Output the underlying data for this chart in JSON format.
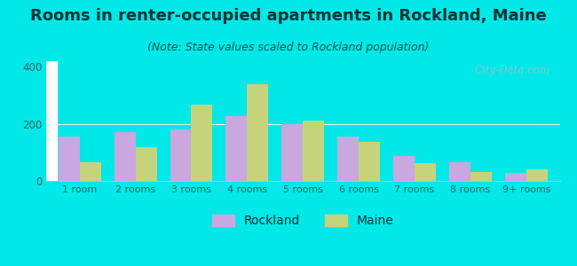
{
  "title": "Rooms in renter-occupied apartments in Rockland, Maine",
  "subtitle": "(Note: State values scaled to Rockland population)",
  "categories": [
    "1 room",
    "2 rooms",
    "3 rooms",
    "4 rooms",
    "5 rooms",
    "6 rooms",
    "7 rooms",
    "8 rooms",
    "9+ rooms"
  ],
  "rockland": [
    155,
    170,
    182,
    228,
    198,
    155,
    88,
    65,
    28
  ],
  "maine": [
    65,
    118,
    268,
    338,
    212,
    138,
    62,
    32,
    40
  ],
  "rockland_color": "#c8a8df",
  "maine_color": "#c5d47a",
  "background_color": "#00e8e8",
  "ylim": [
    0,
    420
  ],
  "yticks": [
    0,
    200,
    400
  ],
  "watermark": "City-Data.com",
  "title_fontsize": 13,
  "subtitle_fontsize": 9,
  "legend_fontsize": 10,
  "title_color": "#003333",
  "subtitle_color": "#005555",
  "tick_color": "#336666"
}
